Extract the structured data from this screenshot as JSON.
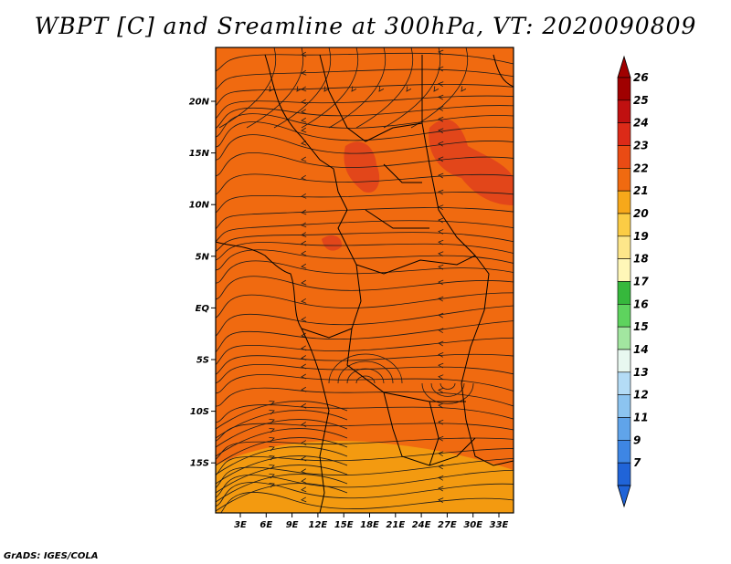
{
  "title": "WBPT [C] and Sreamline at 300hPa, VT: 2020090809",
  "credit": "GrADS: IGES/COLA",
  "map": {
    "lon_ticks": [
      "3E",
      "6E",
      "9E",
      "12E",
      "15E",
      "18E",
      "21E",
      "24E",
      "27E",
      "30E",
      "33E"
    ],
    "lat_ticks": [
      "20N",
      "15N",
      "10N",
      "5N",
      "EQ",
      "5S",
      "10S",
      "15S"
    ],
    "field_color": "#f06a10",
    "cool_band_color": "#f39a10",
    "warm_patch_color": "#e2461a",
    "streamline_color": "#1a1a1a"
  },
  "colorbar": {
    "labels": [
      "26",
      "25",
      "24",
      "23",
      "22",
      "21",
      "20",
      "19",
      "18",
      "17",
      "16",
      "15",
      "14",
      "13",
      "12",
      "11",
      "9",
      "7"
    ],
    "colors": [
      "#a00000",
      "#c01010",
      "#dc2a18",
      "#ea4b14",
      "#f06a10",
      "#f7a81a",
      "#fbcc45",
      "#fde68a",
      "#fff7b8",
      "#36b83c",
      "#5ed35e",
      "#a2e6a0",
      "#e8f8f0",
      "#b4dcf6",
      "#8cc4f0",
      "#60a4ea",
      "#3e86e4",
      "#2064d8"
    ]
  }
}
